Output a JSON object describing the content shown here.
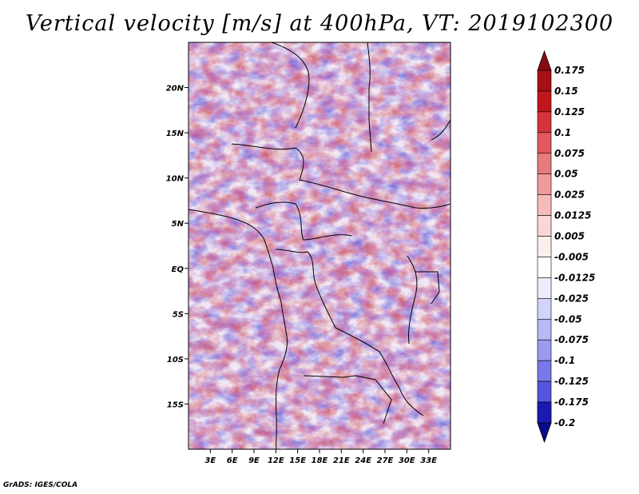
{
  "title": "Vertical velocity [m/s] at 400hPa, VT: 2019102300",
  "credit": "GrADS: IGES/COLA",
  "map": {
    "lon_range": [
      0,
      36
    ],
    "lat_range": [
      -20,
      25
    ],
    "lat_ticks": [
      {
        "value": 20,
        "label": "20N"
      },
      {
        "value": 15,
        "label": "15N"
      },
      {
        "value": 10,
        "label": "10N"
      },
      {
        "value": 5,
        "label": "5N"
      },
      {
        "value": 0,
        "label": "EQ"
      },
      {
        "value": -5,
        "label": "5S"
      },
      {
        "value": -10,
        "label": "10S"
      },
      {
        "value": -15,
        "label": "15S"
      }
    ],
    "lon_ticks": [
      {
        "value": 3,
        "label": "3E"
      },
      {
        "value": 6,
        "label": "6E"
      },
      {
        "value": 9,
        "label": "9E"
      },
      {
        "value": 12,
        "label": "12E"
      },
      {
        "value": 15,
        "label": "15E"
      },
      {
        "value": 18,
        "label": "18E"
      },
      {
        "value": 21,
        "label": "21E"
      },
      {
        "value": 24,
        "label": "24E"
      },
      {
        "value": 27,
        "label": "27E"
      },
      {
        "value": 30,
        "label": "30E"
      },
      {
        "value": 33,
        "label": "33E"
      }
    ]
  },
  "colorbar": {
    "levels": [
      {
        "label": "0.175",
        "color": "#a50f15"
      },
      {
        "label": "0.15",
        "color": "#c2161b"
      },
      {
        "label": "0.125",
        "color": "#d6333a"
      },
      {
        "label": "0.1",
        "color": "#e05a5f"
      },
      {
        "label": "0.075",
        "color": "#e87b7d"
      },
      {
        "label": "0.05",
        "color": "#f09c9c"
      },
      {
        "label": "0.025",
        "color": "#f6bcbc"
      },
      {
        "label": "0.0125",
        "color": "#fad6d6"
      },
      {
        "label": "0.005",
        "color": "#fdeeee"
      },
      {
        "label": "-0.005",
        "color": "#ffffff"
      },
      {
        "label": "-0.0125",
        "color": "#ececfd"
      },
      {
        "label": "-0.025",
        "color": "#d4d4fa"
      },
      {
        "label": "-0.05",
        "color": "#b8b8f5"
      },
      {
        "label": "-0.075",
        "color": "#9a9aef"
      },
      {
        "label": "-0.1",
        "color": "#7878e6"
      },
      {
        "label": "-0.125",
        "color": "#5555db"
      },
      {
        "label": "-0.175",
        "color": "#3333c9"
      },
      {
        "label": "-0.2",
        "color": "#1a1ab0"
      }
    ],
    "top_color": "#8b0a0f",
    "bottom_color": "#0a0a8c"
  }
}
